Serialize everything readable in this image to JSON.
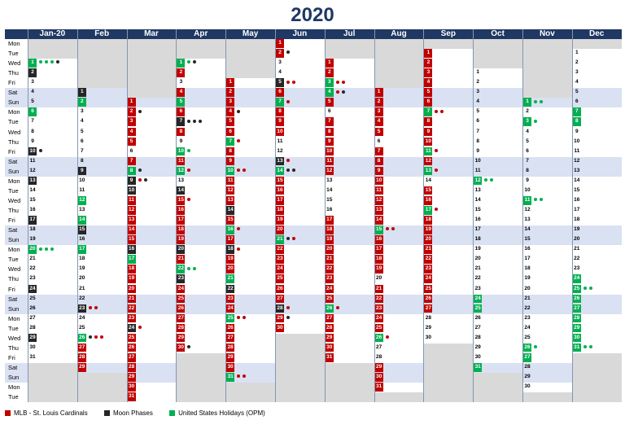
{
  "title": "2020",
  "months": [
    "Jan-20",
    "Feb",
    "Mar",
    "Apr",
    "May",
    "Jun",
    "Jul",
    "Aug",
    "Sep",
    "Oct",
    "Nov",
    "Dec"
  ],
  "weekdays": [
    "Mon",
    "Tue",
    "Wed",
    "Thu",
    "Fri",
    "Sat",
    "Sun"
  ],
  "start_offsets": [
    2,
    5,
    6,
    2,
    4,
    0,
    2,
    5,
    1,
    3,
    6,
    1
  ],
  "days_in_month": [
    31,
    29,
    31,
    30,
    31,
    30,
    31,
    31,
    30,
    31,
    30,
    31
  ],
  "events": {
    "mlb": {
      "label": "MLB - St. Louis Cardinals",
      "color": "#c00000"
    },
    "moon": {
      "label": "Moon Phases",
      "color": "#262626"
    },
    "holiday": {
      "label": "United States Holidays (OPM)",
      "color": "#00b050"
    }
  },
  "highlights": {
    "0": {
      "1": "grn:ggg b",
      "2": "blk",
      "6": "grn",
      "10": "blk:b",
      "13": "blk",
      "17": "blk",
      "20": "grn:ggg",
      "24": "blk",
      "29": "blk"
    },
    "1": {
      "1": "blk",
      "2": "grn",
      "9": "blk",
      "12": "grn",
      "14": "grn",
      "15": "blk",
      "17": "grn",
      "23": "blk:rr",
      "26": "grn:brr",
      "27": "red",
      "28": "red",
      "29": "red"
    },
    "2": {
      "1": "red",
      "2": "red:b",
      "3": "red",
      "4": "red",
      "5": "red",
      "7": "red",
      "8": "grn:b",
      "9": "blk:rb",
      "10": "blk",
      "11": "red",
      "12": "red",
      "13": "red",
      "14": "red",
      "15": "red",
      "16": "blk",
      "17": "grn",
      "18": "red",
      "19": "red",
      "20": "red",
      "21": "red",
      "22": "red",
      "23": "red",
      "24": "blk:r",
      "25": "red",
      "26": "red",
      "27": "red",
      "28": "red",
      "29": "red",
      "30": "red",
      "31": "red"
    },
    "3": {
      "1": "grn:g b",
      "2": "red",
      "4": "red",
      "5": "grn",
      "6": "red",
      "7": "blk:bbb",
      "8": "red",
      "10": "grn:g",
      "11": "red",
      "12": "grn:r",
      "14": "blk",
      "15": "red:r",
      "16": "red",
      "17": "red",
      "18": "red",
      "19": "red",
      "20": "blk",
      "21": "red",
      "22": "grn:gg",
      "23": "blk",
      "24": "red",
      "25": "red",
      "26": "red",
      "27": "red",
      "28": "red",
      "29": "red",
      "30": "red:b"
    },
    "4": {
      "1": "red",
      "2": "red",
      "3": "red",
      "4": "red:b",
      "5": "red",
      "6": "red",
      "7": "grn:r",
      "8": "red",
      "9": "red",
      "10": "grn:rr",
      "11": "red",
      "12": "red",
      "13": "red",
      "14": "blk",
      "15": "red",
      "16": "grn:r",
      "17": "red",
      "18": "blk:r",
      "19": "red",
      "20": "red",
      "21": "grn",
      "22": "blk",
      "23": "red",
      "24": "red",
      "25": "grn:rr",
      "26": "red",
      "27": "red",
      "28": "red",
      "29": "red",
      "30": "red",
      "31": "grn:rr"
    },
    "5": {
      "1": "red",
      "2": "red:b",
      "5": "blk:rr",
      "6": "red",
      "7": "grn:r",
      "8": "red",
      "9": "red",
      "10": "red",
      "13": "blk:r",
      "14": "grn:bb",
      "15": "red",
      "16": "red",
      "17": "red",
      "18": "red",
      "19": "red",
      "20": "red",
      "21": "grn:b r",
      "22": "red",
      "23": "red",
      "24": "red",
      "25": "red",
      "26": "red",
      "27": "red",
      "28": "blk:r",
      "29": "red:b",
      "30": "red"
    },
    "6": {
      "1": "red",
      "2": "red",
      "3": "grn:rr",
      "4": "grn:rb",
      "5": "red",
      "7": "red",
      "8": "red",
      "9": "red",
      "10": "red",
      "11": "red",
      "12": "red",
      "17": "red",
      "18": "red",
      "19": "red",
      "20": "red",
      "21": "red",
      "22": "red",
      "23": "red",
      "24": "red",
      "25": "red",
      "26": "grn:r",
      "27": "red",
      "28": "red",
      "29": "red",
      "30": "red",
      "31": "red"
    },
    "7": {
      "1": "red",
      "2": "red",
      "3": "red",
      "4": "red",
      "5": "red",
      "7": "red",
      "8": "red",
      "9": "red",
      "10": "red",
      "11": "red",
      "12": "red",
      "13": "red",
      "14": "red",
      "15": "grn:rr",
      "16": "red",
      "17": "red",
      "18": "red",
      "19": "red",
      "21": "red",
      "22": "red",
      "23": "red",
      "24": "red",
      "25": "red",
      "26": "grn:r",
      "29": "red",
      "30": "red",
      "31": "red"
    },
    "8": {
      "1": "red",
      "2": "red",
      "3": "red",
      "4": "red",
      "5": "red",
      "6": "red",
      "7": "grn:rr",
      "8": "red",
      "9": "red",
      "10": "red",
      "11": "grn:r",
      "12": "red",
      "13": "grn:r",
      "15": "red",
      "16": "red",
      "17": "grn:r",
      "18": "red",
      "19": "red",
      "20": "red",
      "21": "red",
      "22": "red",
      "23": "red",
      "24": "red",
      "25": "red",
      "26": "red",
      "27": "red"
    },
    "9": {
      "12": "grn:gg",
      "24": "grn",
      "25": "grn",
      "31": "grn"
    },
    "10": {
      "1": "grn:gg",
      "3": "grn:g",
      "11": "grn:gg",
      "26": "grn:g",
      "27": "grn"
    },
    "11": {
      "7": "grn",
      "8": "grn",
      "24": "grn",
      "25": "grn:gg",
      "26": "grn",
      "27": "grn",
      "28": "grn",
      "29": "grn",
      "30": "grn",
      "31": "grn:gg"
    }
  }
}
